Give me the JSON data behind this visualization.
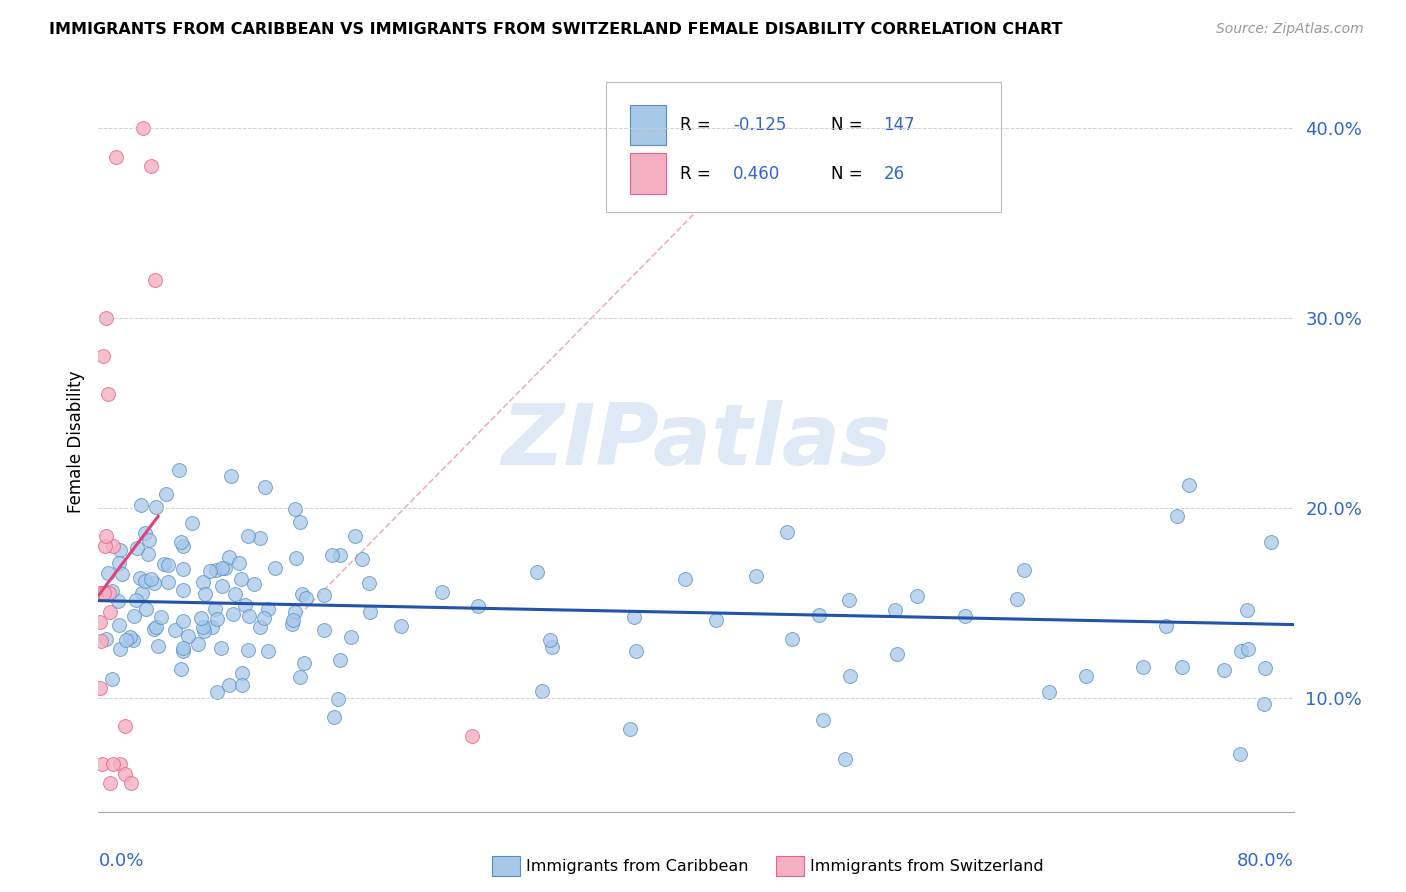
{
  "title": "IMMIGRANTS FROM CARIBBEAN VS IMMIGRANTS FROM SWITZERLAND FEMALE DISABILITY CORRELATION CHART",
  "source": "Source: ZipAtlas.com",
  "ylabel": "Female Disability",
  "y_ticks": [
    0.1,
    0.2,
    0.3,
    0.4
  ],
  "y_tick_labels": [
    "10.0%",
    "20.0%",
    "30.0%",
    "40.0%"
  ],
  "xlim": [
    0.0,
    0.8
  ],
  "ylim": [
    0.04,
    0.43
  ],
  "blue_R": -0.125,
  "blue_N": 147,
  "pink_R": 0.46,
  "pink_N": 26,
  "blue_color": "#a8c8e8",
  "pink_color": "#f4b0c0",
  "blue_edge": "#5090c8",
  "pink_edge": "#e86090",
  "trend_blue": "#2255aa",
  "trend_pink": "#dd4477",
  "ref_line_color": "#ddaaaa",
  "watermark": "ZIPatlas",
  "background": "#ffffff",
  "legend_label_blue": "Immigrants from Caribbean",
  "legend_label_pink": "Immigrants from Switzerland",
  "legend_text_color": "#3366cc",
  "legend_R_color": "#3366cc",
  "legend_N_color": "#3366cc"
}
